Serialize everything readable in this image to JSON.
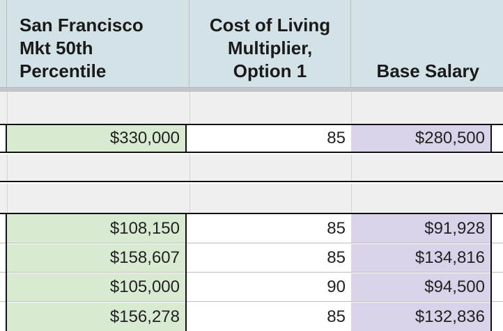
{
  "header": {
    "col_market": "San Francisco Mkt 50th Percentile",
    "col_multiplier": "Cost of Living Multiplier, Option 1",
    "col_base": "Base Salary"
  },
  "rows": [
    {
      "market": "$330,000",
      "multiplier": "85",
      "base": "$280,500"
    },
    {
      "market": "$108,150",
      "multiplier": "85",
      "base": "$91,928"
    },
    {
      "market": "$158,607",
      "multiplier": "85",
      "base": "$134,816"
    },
    {
      "market": "$105,000",
      "multiplier": "90",
      "base": "$94,500"
    },
    {
      "market": "$156,278",
      "multiplier": "85",
      "base": "$132,836"
    }
  ],
  "colors": {
    "header_bg": "#d3e2e6",
    "market_fill": "#d9ead3",
    "base_fill": "#d9d2e9",
    "empty_row_fill": "#efefef"
  }
}
